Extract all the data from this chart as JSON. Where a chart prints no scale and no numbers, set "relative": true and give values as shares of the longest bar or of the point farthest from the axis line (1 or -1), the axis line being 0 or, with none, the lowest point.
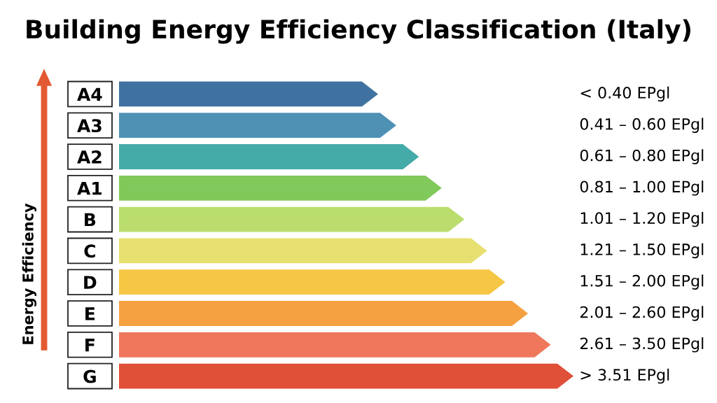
{
  "chart_data": {
    "type": "bar",
    "orientation": "horizontal",
    "relative": true,
    "title": "Building Energy Efficiency Classification (Italy)",
    "ylabel": "Energy Efficiency",
    "categories": [
      "A4",
      "A3",
      "A2",
      "A1",
      "B",
      "C",
      "D",
      "E",
      "F",
      "G"
    ],
    "values": [
      0.57,
      0.61,
      0.66,
      0.71,
      0.76,
      0.81,
      0.85,
      0.9,
      0.95,
      1
    ],
    "colors": [
      "#3f72a0",
      "#4e91b5",
      "#45aba8",
      "#80c95a",
      "#badd6d",
      "#e7e070",
      "#f6c744",
      "#f6a141",
      "#ef775b",
      "#e04f38"
    ],
    "annotations": [
      "< 0.40 EPgl",
      "0.41 – 0.60 EPgl",
      "0.61 – 0.80 EPgl",
      "0.81 – 1.00 EPgl",
      "1.01 – 1.20 EPgl",
      "1.21 – 1.50 EPgl",
      "1.51 – 2.00 EPgl",
      "2.01 – 2.60 EPgl",
      "2.61 – 3.50 EPgl",
      "> 3.51 EPgl"
    ]
  }
}
